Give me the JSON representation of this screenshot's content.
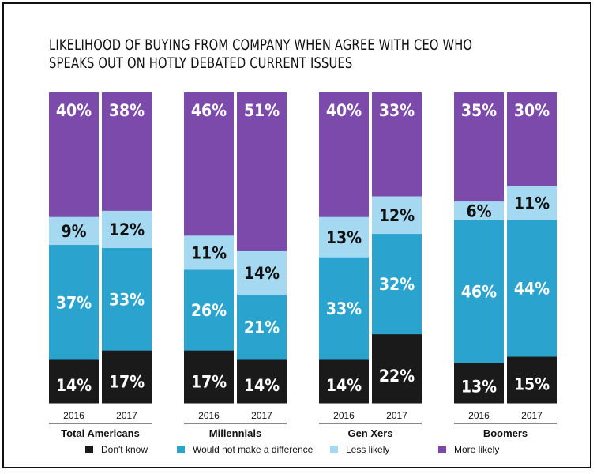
{
  "chart_data": {
    "type": "bar",
    "stacked": true,
    "title": "Likelihood of buying from company when agree with CEO who speaks out on hotly debated current issues",
    "groups": [
      {
        "name": "Total Americans",
        "years": [
          "2016",
          "2017"
        ]
      },
      {
        "name": "Millennials",
        "years": [
          "2016",
          "2017"
        ]
      },
      {
        "name": "Gen Xers",
        "years": [
          "2016",
          "2017"
        ]
      },
      {
        "name": "Boomers",
        "years": [
          "2016",
          "2017"
        ]
      }
    ],
    "series": [
      {
        "name": "Don't know",
        "key": "dont_know",
        "color": "#1a1a1a",
        "text_color": "#ffffff",
        "values": [
          [
            14,
            17
          ],
          [
            17,
            14
          ],
          [
            14,
            22
          ],
          [
            13,
            15
          ]
        ]
      },
      {
        "name": "Would not make a difference",
        "key": "no_difference",
        "color": "#2aa3cf",
        "text_color": "#ffffff",
        "values": [
          [
            37,
            33
          ],
          [
            26,
            21
          ],
          [
            33,
            32
          ],
          [
            46,
            44
          ]
        ]
      },
      {
        "name": "Less likely",
        "key": "less_likely",
        "color": "#a4d9f1",
        "text_color": "#111111",
        "values": [
          [
            9,
            12
          ],
          [
            11,
            14
          ],
          [
            13,
            12
          ],
          [
            6,
            11
          ]
        ]
      },
      {
        "name": "More likely",
        "key": "more_likely",
        "color": "#7b4aab",
        "text_color": "#ffffff",
        "values": [
          [
            40,
            38
          ],
          [
            46,
            51
          ],
          [
            40,
            33
          ],
          [
            35,
            30
          ]
        ]
      }
    ],
    "ylim": [
      0,
      100
    ],
    "value_suffix": "%",
    "legend_position": "bottom"
  }
}
